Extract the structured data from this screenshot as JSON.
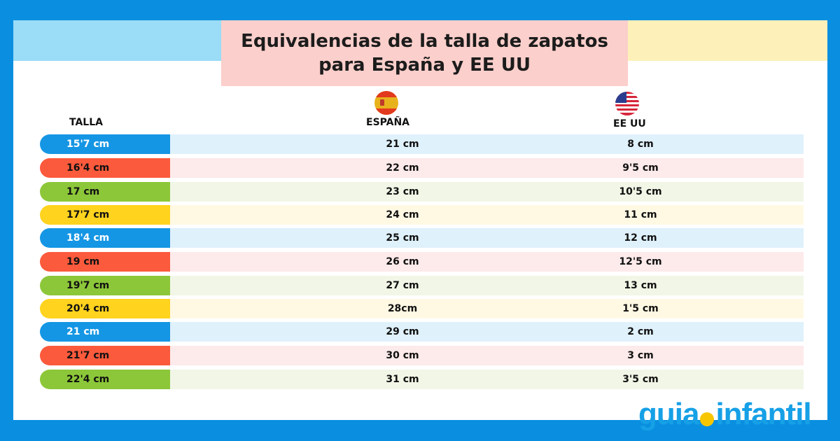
{
  "title": {
    "line1": "Equivalencias de la talla de zapatos",
    "line2": "para España y EE UU"
  },
  "headers": {
    "talla": "TALLA",
    "espana": "ESPAÑA",
    "eeuu": "EE UU"
  },
  "colors": {
    "blue": "#1596e4",
    "red": "#fb5a3c",
    "green": "#8cc739",
    "yellow": "#ffd31e",
    "blue_tint": "#dff1fb",
    "red_tint": "#fdeaea",
    "green_tint": "#f1f6e6",
    "yellow_tint": "#fff8e3"
  },
  "table": {
    "rows": [
      {
        "talla": "15'7 cm",
        "espana": "21 cm",
        "eeuu": "8 cm",
        "color": "blue"
      },
      {
        "talla": "16'4 cm",
        "espana": "22 cm",
        "eeuu": "9'5 cm",
        "color": "red"
      },
      {
        "talla": "17 cm",
        "espana": "23 cm",
        "eeuu": "10'5 cm",
        "color": "green"
      },
      {
        "talla": "17'7 cm",
        "espana": "24 cm",
        "eeuu": "11 cm",
        "color": "yellow"
      },
      {
        "talla": "18'4 cm",
        "espana": "25 cm",
        "eeuu": "12 cm",
        "color": "blue"
      },
      {
        "talla": "19 cm",
        "espana": "26 cm",
        "eeuu": "12'5 cm",
        "color": "red"
      },
      {
        "talla": "19'7 cm",
        "espana": "27 cm",
        "eeuu": "13 cm",
        "color": "green"
      },
      {
        "talla": "20'4 cm",
        "espana": "28cm",
        "eeuu": "1'5 cm",
        "color": "yellow"
      },
      {
        "talla": "21 cm",
        "espana": "29 cm",
        "eeuu": "2 cm",
        "color": "blue"
      },
      {
        "talla": "21'7 cm",
        "espana": "30 cm",
        "eeuu": "3 cm",
        "color": "red"
      },
      {
        "talla": "22'4 cm",
        "espana": "31 cm",
        "eeuu": "3'5 cm",
        "color": "green"
      }
    ]
  },
  "logo": {
    "part1": "guia",
    "part2": "infantil"
  },
  "icons": {
    "spain": "spain-flag-icon",
    "usa": "usa-flag-icon"
  }
}
